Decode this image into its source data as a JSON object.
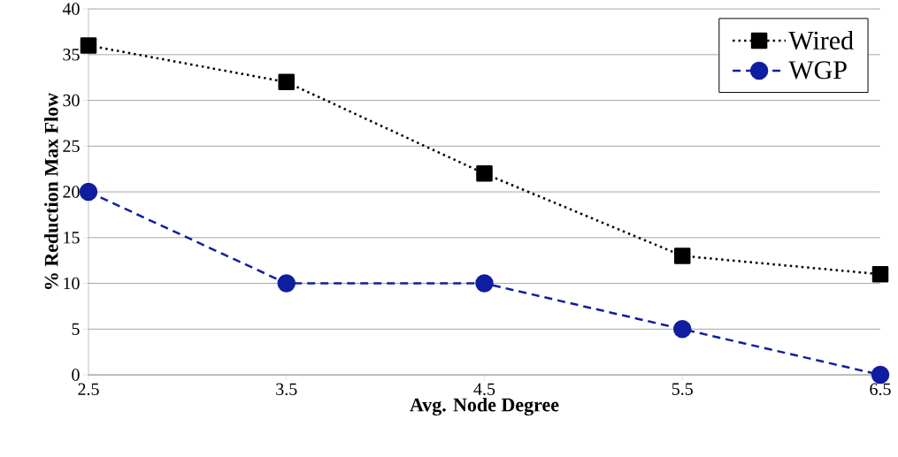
{
  "chart_data": {
    "type": "line",
    "xlabel": "Avg. Node Degree",
    "ylabel": "% Reduction Max Flow",
    "x": [
      2.5,
      3.5,
      4.5,
      5.5,
      6.5
    ],
    "series": [
      {
        "name": "Wired",
        "color": "#000000",
        "values": [
          36,
          32,
          22,
          13,
          11
        ],
        "marker": "square",
        "line_style": "dotted"
      },
      {
        "name": "WGP",
        "color": "#0f1ea0",
        "values": [
          20,
          10,
          10,
          5,
          0
        ],
        "marker": "circle",
        "line_style": "dashed"
      }
    ],
    "xlim": [
      2.5,
      6.5
    ],
    "xticks": [
      2.5,
      3.5,
      4.5,
      5.5,
      6.5
    ],
    "ylim": [
      0,
      40
    ],
    "yticks": [
      0,
      5,
      10,
      15,
      20,
      25,
      30,
      35,
      40
    ],
    "grid": "y",
    "legend": "top right"
  }
}
